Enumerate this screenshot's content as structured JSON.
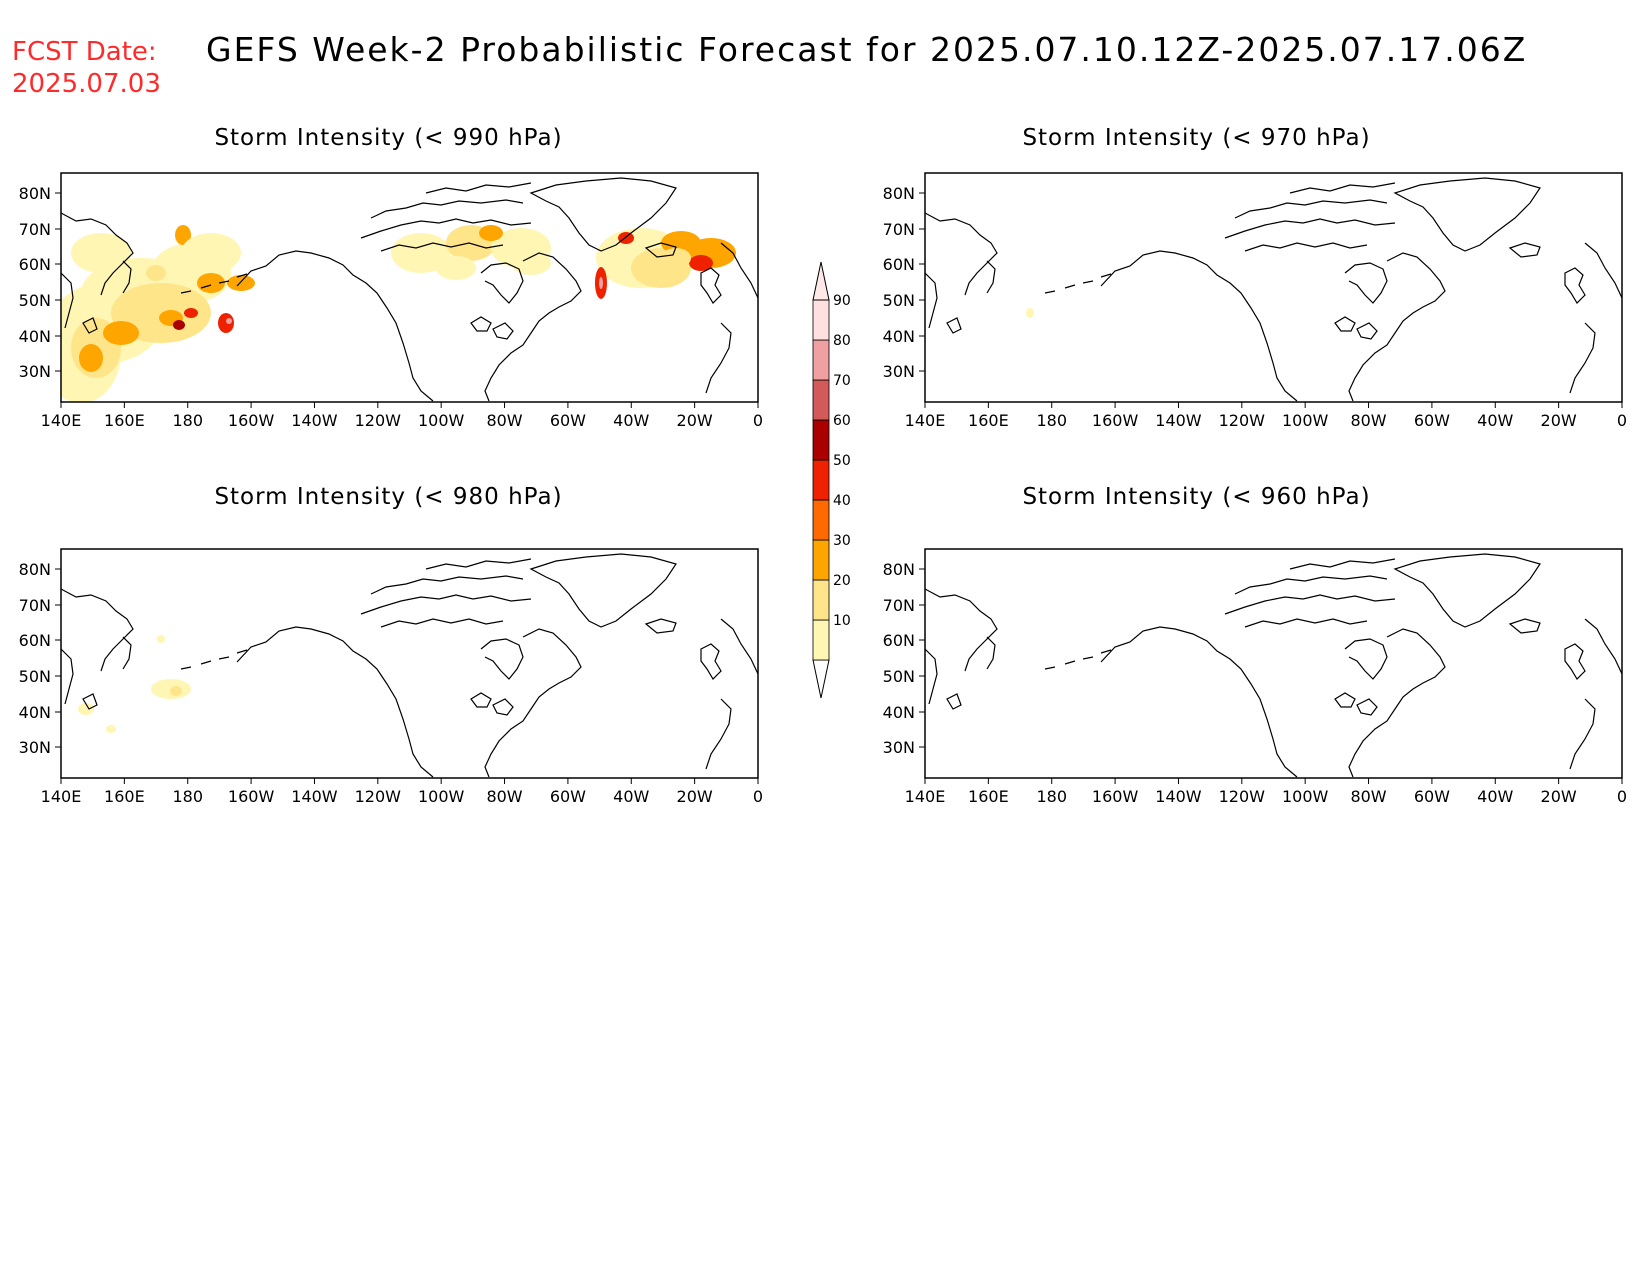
{
  "header": {
    "fcst_label": "FCST Date:",
    "fcst_date": "2025.07.03",
    "title": "GEFS Week-2 Probabilistic Forecast for 2025.07.10.12Z-2025.07.17.06Z"
  },
  "axes": {
    "lon_ticks": [
      "140E",
      "160E",
      "180",
      "160W",
      "140W",
      "120W",
      "100W",
      "80W",
      "60W",
      "40W",
      "20W",
      "0"
    ],
    "lat_ticks": [
      "80N",
      "70N",
      "60N",
      "50N",
      "40N",
      "30N"
    ]
  },
  "panels": [
    {
      "title": "Storm Intensity (< 990 hPa)",
      "coverage": "high"
    },
    {
      "title": "Storm Intensity (< 970 hPa)",
      "coverage": "trace"
    },
    {
      "title": "Storm Intensity (< 980 hPa)",
      "coverage": "low"
    },
    {
      "title": "Storm Intensity (< 960 hPa)",
      "coverage": "none"
    }
  ],
  "colorbar": {
    "levels": [
      "10",
      "20",
      "30",
      "40",
      "50",
      "60",
      "70",
      "80",
      "90"
    ],
    "colors": [
      "#fff6b3",
      "#ffe58a",
      "#ffa500",
      "#ff6a00",
      "#ee2200",
      "#aa0000",
      "#d45a5a",
      "#f0a0a0",
      "#ffe0e0"
    ]
  }
}
